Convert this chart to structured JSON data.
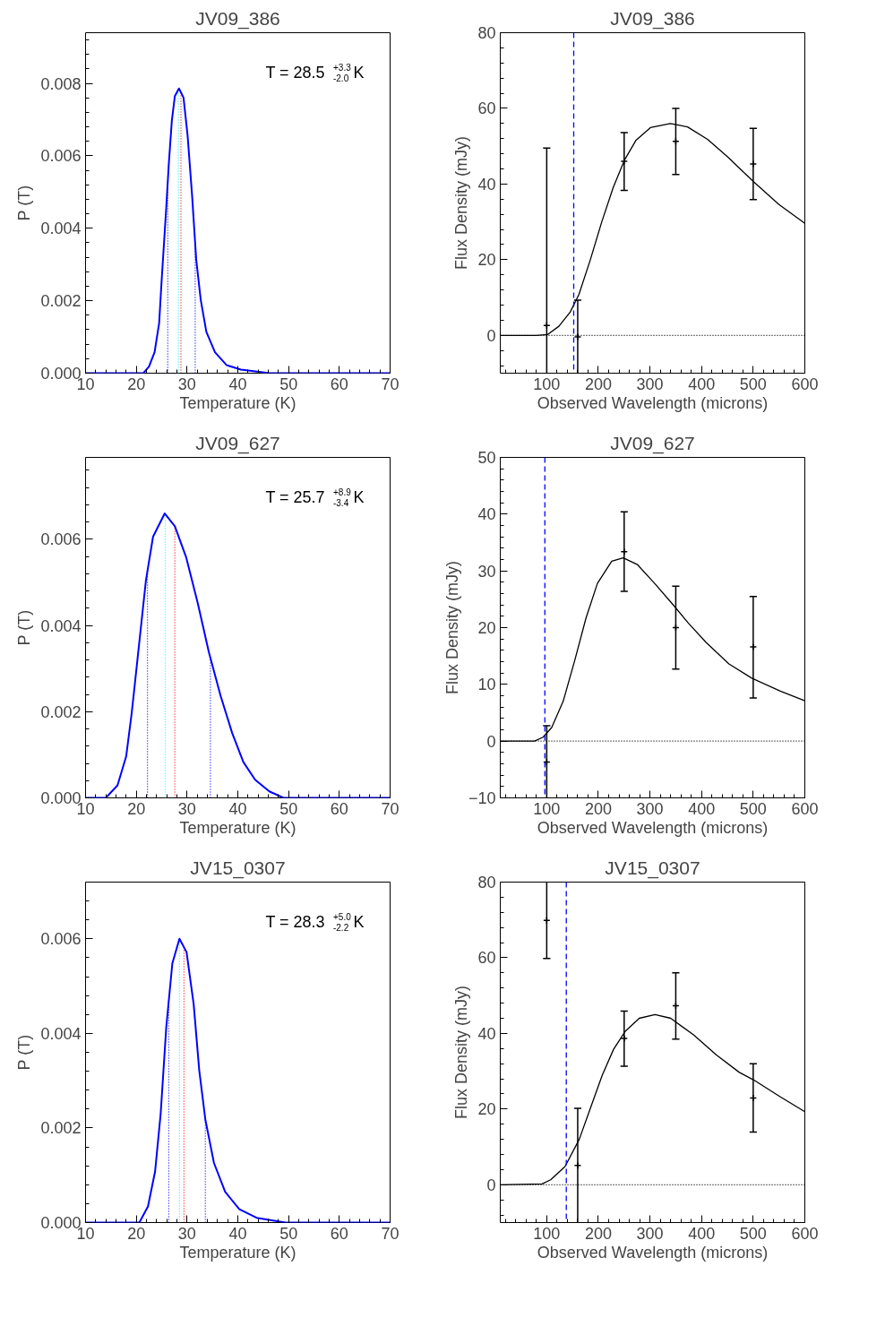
{
  "chart_data": [
    {
      "type": "line",
      "title": "JV09_386",
      "xlabel": "Temperature (K)",
      "ylabel": "P (T)",
      "xlim": [
        10,
        70
      ],
      "xticks": [
        10,
        20,
        30,
        40,
        50,
        60,
        70
      ],
      "ylim": [
        0,
        0.0094
      ],
      "yticks": [
        {
          "value": 0,
          "label": "0.000"
        },
        {
          "value": 0.002,
          "label": "0.002"
        },
        {
          "value": 0.004,
          "label": "0.004"
        },
        {
          "value": 0.006,
          "label": "0.006"
        },
        {
          "value": 0.008,
          "label": "0.008"
        }
      ],
      "series": [
        {
          "color": "#0000ff",
          "x": [
            10,
            21.4,
            22.5,
            23.6,
            24.5,
            25.0,
            25.9,
            26.4,
            27.0,
            27.6,
            28.4,
            29.3,
            30.1,
            31.0,
            31.8,
            32.7,
            33.8,
            35.5,
            37.8,
            40.6,
            46.3,
            70
          ],
          "values": [
            0,
            0,
            0.00018,
            0.00058,
            0.00138,
            0.00258,
            0.00457,
            0.00577,
            0.00697,
            0.00765,
            0.00786,
            0.00761,
            0.00657,
            0.00489,
            0.00314,
            0.00202,
            0.00114,
            0.00058,
            0.00022,
            0.0001,
            0,
            0
          ]
        }
      ],
      "ref_lines": [
        {
          "axis": "x",
          "value": 26.2,
          "color": "#0000ff",
          "line_style": "dotted"
        },
        {
          "axis": "x",
          "value": 28.3,
          "color": "#00ffff",
          "line_style": "dotted"
        },
        {
          "axis": "x",
          "value": 28.8,
          "color": "#ff0000",
          "line_style": "dotted"
        },
        {
          "axis": "x",
          "value": 31.6,
          "color": "#0000ff",
          "line_style": "dotted"
        }
      ],
      "annotations": [
        "T = 28.5 $^{+3.3}$$_{-2.0}$ K"
      ]
    },
    {
      "type": "line",
      "title": "JV09_386",
      "xlabel": "Observed Wavelength (microns)",
      "ylabel": "Flux Density (mJy)",
      "xlim": [
        10,
        600
      ],
      "xticks": [
        100,
        200,
        300,
        400,
        500,
        600
      ],
      "ylim": [
        -10,
        80
      ],
      "yticks": [
        0,
        20,
        40,
        60,
        80
      ],
      "series": [
        {
          "type": "line",
          "color": "#000000",
          "x": [
            10,
            79.8,
            101.4,
            123.6,
            145.7,
            162.3,
            184.5,
            206.6,
            228.8,
            250.9,
            273.1,
            300.8,
            339.5,
            372.7,
            411.5,
            450.3,
            500.1,
            549.9,
            600
          ],
          "values": [
            0,
            0,
            0.2,
            2.4,
            6.2,
            10.8,
            20.0,
            30.0,
            39.1,
            46.4,
            51.6,
            54.9,
            56.0,
            55.1,
            51.8,
            47.2,
            40.7,
            34.6,
            29.6
          ]
        },
        {
          "type": "scatter",
          "marker": "cross",
          "color": "#000000",
          "x": [
            100,
            160,
            250,
            350,
            500
          ],
          "values": [
            2.6,
            -0.4,
            46.0,
            51.3,
            45.3
          ],
          "errors": [
            [
              -10,
              49.5
            ],
            [
              -10,
              9.3
            ],
            [
              38.3,
              53.6
            ],
            [
              42.5,
              60.0
            ],
            [
              35.9,
              54.7
            ]
          ]
        }
      ],
      "ref_lines": [
        {
          "axis": "x",
          "value": 152.3,
          "color": "#0000ff",
          "line_style": "dashed"
        },
        {
          "axis": "y",
          "value": 0,
          "color": "#000000",
          "line_style": "dotted"
        }
      ]
    },
    {
      "type": "line",
      "title": "JV09_627",
      "xlabel": "Temperature (K)",
      "ylabel": "P (T)",
      "xlim": [
        10,
        70
      ],
      "xticks": [
        10,
        20,
        30,
        40,
        50,
        60,
        70
      ],
      "ylim": [
        0,
        0.0079
      ],
      "yticks": [
        {
          "value": 0,
          "label": "0.000"
        },
        {
          "value": 0.002,
          "label": "0.002"
        },
        {
          "value": 0.004,
          "label": "0.004"
        },
        {
          "value": 0.006,
          "label": "0.006"
        }
      ],
      "series": [
        {
          "color": "#0000ff",
          "x": [
            10,
            14.0,
            16.3,
            18.0,
            19.1,
            20.5,
            21.9,
            23.3,
            25.6,
            27.6,
            29.8,
            32.1,
            34.3,
            36.6,
            38.9,
            41.1,
            43.4,
            46.2,
            49.0,
            52.4,
            70
          ],
          "values": [
            0,
            0,
            0.00029,
            0.00096,
            0.00197,
            0.00351,
            0.00505,
            0.00606,
            0.0066,
            0.0063,
            0.00559,
            0.00452,
            0.00338,
            0.00237,
            0.0015,
            0.00083,
            0.00042,
            0.00015,
            0,
            0,
            0
          ]
        }
      ],
      "ref_lines": [
        {
          "axis": "x",
          "value": 22.2,
          "color": "#0000ff",
          "line_style": "dotted"
        },
        {
          "axis": "x",
          "value": 25.7,
          "color": "#00ffff",
          "line_style": "dotted"
        },
        {
          "axis": "x",
          "value": 27.6,
          "color": "#ff0000",
          "line_style": "dotted"
        },
        {
          "axis": "x",
          "value": 34.6,
          "color": "#0000ff",
          "line_style": "dotted"
        }
      ],
      "annotations": [
        "T = 25.7 $^{+8.9}$$_{-3.4}$ K"
      ]
    },
    {
      "type": "line",
      "title": "JV09_627",
      "xlabel": "Observed Wavelength (microns)",
      "ylabel": "Flux Density (mJy)",
      "xlim": [
        10,
        600
      ],
      "xticks": [
        100,
        200,
        300,
        400,
        500,
        600
      ],
      "ylim": [
        -10,
        50
      ],
      "yticks": [
        -10,
        0,
        10,
        20,
        30,
        40,
        50
      ],
      "series": [
        {
          "type": "line",
          "color": "#000000",
          "x": [
            10,
            76.4,
            93.0,
            109.6,
            131.8,
            153.9,
            176.1,
            198.2,
            225.9,
            248.1,
            275.8,
            309.0,
            342.2,
            375.4,
            408.7,
            453.0,
            497.2,
            552.6,
            600
          ],
          "values": [
            0,
            0,
            0.7,
            2.4,
            7.0,
            14.1,
            21.7,
            27.8,
            31.7,
            32.3,
            31.1,
            27.8,
            24.3,
            20.7,
            17.4,
            13.6,
            11.1,
            8.8,
            7.1
          ]
        },
        {
          "type": "scatter",
          "marker": "cross",
          "color": "#000000",
          "x": [
            100,
            250,
            350,
            500
          ],
          "values": [
            -3.7,
            33.4,
            20.0,
            16.6
          ],
          "errors": [
            [
              -10,
              2.7
            ],
            [
              26.4,
              40.4
            ],
            [
              12.7,
              27.3
            ],
            [
              7.6,
              25.5
            ]
          ]
        }
      ],
      "ref_lines": [
        {
          "axis": "x",
          "value": 96.4,
          "color": "#0000ff",
          "line_style": "dashed"
        },
        {
          "axis": "y",
          "value": 0,
          "color": "#000000",
          "line_style": "dotted"
        }
      ]
    },
    {
      "type": "line",
      "title": "JV15_0307",
      "xlabel": "Temperature (K)",
      "ylabel": "P (T)",
      "xlim": [
        10,
        70
      ],
      "xticks": [
        10,
        20,
        30,
        40,
        50,
        60,
        70
      ],
      "ylim": [
        0,
        0.0072
      ],
      "yticks": [
        {
          "value": 0,
          "label": "0.000"
        },
        {
          "value": 0.002,
          "label": "0.002"
        },
        {
          "value": 0.004,
          "label": "0.004"
        },
        {
          "value": 0.006,
          "label": "0.006"
        }
      ],
      "series": [
        {
          "color": "#0000ff",
          "x": [
            10,
            20.6,
            22.3,
            23.7,
            24.8,
            25.9,
            27.1,
            28.5,
            29.9,
            31.3,
            32.4,
            33.6,
            35.3,
            37.5,
            40.3,
            43.7,
            49.4,
            70
          ],
          "values": [
            0,
            0,
            0.00034,
            0.00108,
            0.0023,
            0.00413,
            0.00548,
            0.006,
            0.00572,
            0.00462,
            0.00322,
            0.00218,
            0.00126,
            0.00065,
            0.00028,
            0.0001,
            0,
            0
          ]
        }
      ],
      "ref_lines": [
        {
          "axis": "x",
          "value": 26.4,
          "color": "#0000ff",
          "line_style": "dotted"
        },
        {
          "axis": "x",
          "value": 28.5,
          "color": "#00ffff",
          "line_style": "dotted"
        },
        {
          "axis": "x",
          "value": 29.4,
          "color": "#ff0000",
          "line_style": "dotted"
        },
        {
          "axis": "x",
          "value": 33.6,
          "color": "#0000ff",
          "line_style": "dotted"
        }
      ],
      "annotations": [
        "T = 28.3 $^{+5.0}$$_{-2.2}$ K"
      ]
    },
    {
      "type": "line",
      "title": "JV15_0307",
      "xlabel": "Observed Wavelength (microns)",
      "ylabel": "Flux Density (mJy)",
      "xlim": [
        10,
        600
      ],
      "xticks": [
        100,
        200,
        300,
        400,
        500,
        600
      ],
      "ylim": [
        -10,
        80
      ],
      "yticks": [
        0,
        20,
        40,
        60,
        80
      ],
      "series": [
        {
          "type": "line",
          "color": "#000000",
          "x": [
            10,
            91,
            107.7,
            135.4,
            163.0,
            185.3,
            207.4,
            229.5,
            251.7,
            279.3,
            309.8,
            340.2,
            384.5,
            428.8,
            473.1,
            500.8,
            550.6,
            600
          ],
          "values": [
            0,
            0.2,
            1.3,
            4.8,
            12.0,
            20.5,
            28.9,
            35.8,
            40.5,
            44.0,
            45.0,
            44.0,
            39.6,
            34.3,
            29.7,
            27.7,
            23.4,
            19.3
          ]
        },
        {
          "type": "scatter",
          "marker": "cross",
          "color": "#000000",
          "x": [
            100,
            160,
            250,
            350,
            500
          ],
          "values": [
            69.9,
            5.1,
            38.7,
            47.3,
            22.9
          ],
          "errors": [
            [
              59.8,
              80
            ],
            [
              -10,
              20.2
            ],
            [
              31.3,
              45.9
            ],
            [
              38.5,
              56.0
            ],
            [
              13.9,
              32.0
            ]
          ]
        }
      ],
      "ref_lines": [
        {
          "axis": "x",
          "value": 137.9,
          "color": "#0000ff",
          "line_style": "dashed"
        },
        {
          "axis": "y",
          "value": 0,
          "color": "#000000",
          "line_style": "dotted"
        }
      ]
    }
  ]
}
